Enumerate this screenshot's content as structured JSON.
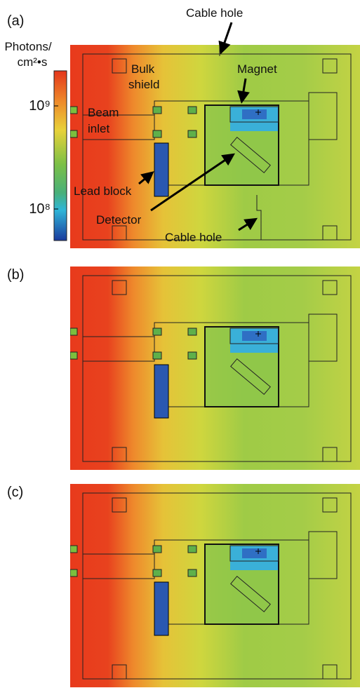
{
  "panels": [
    {
      "label": "(a)"
    },
    {
      "label": "(b)"
    },
    {
      "label": "(c)"
    }
  ],
  "colorbar": {
    "title": [
      "Photons/",
      "cm²•s"
    ],
    "ticks": [
      "10⁹",
      "10⁸"
    ]
  },
  "annotations": {
    "cable_hole_top": "Cable hole",
    "bulk_shield": [
      "Bulk",
      "shield"
    ],
    "magnet": "Magnet",
    "beam_inlet": [
      "Beam",
      "inlet"
    ],
    "lead_block": "Lead block",
    "detector": "Detector",
    "cable_hole_bottom": "Cable hole"
  }
}
